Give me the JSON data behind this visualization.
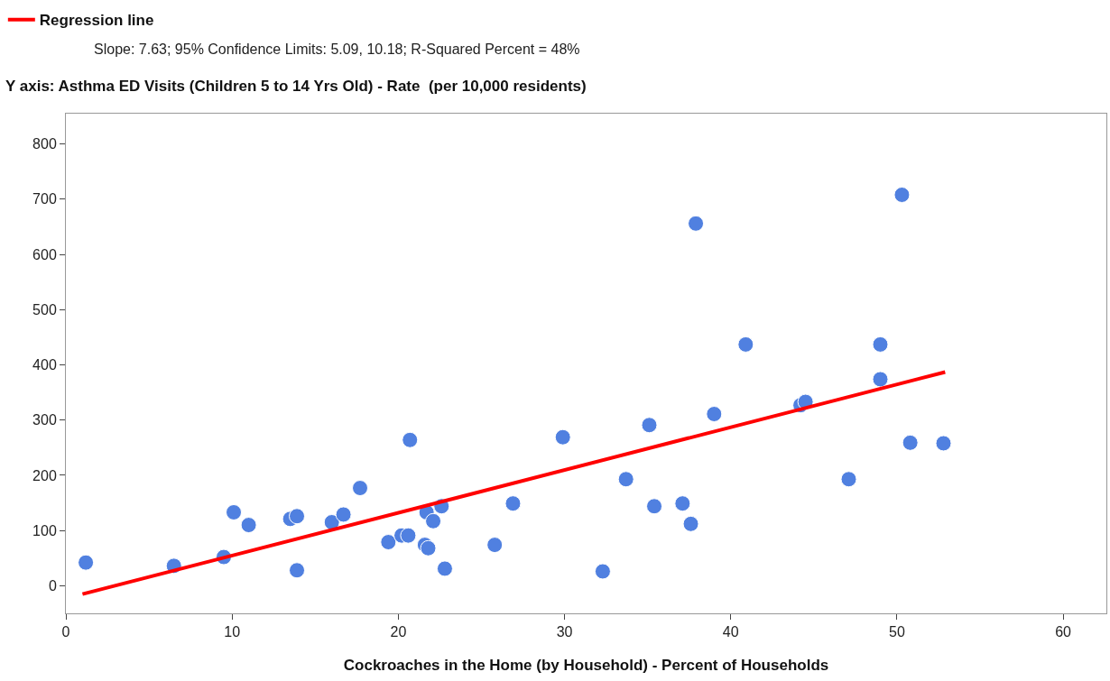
{
  "chart_data": {
    "type": "scatter",
    "annotations": [
      "Slope: 7.63; 95% Confidence Limits: 5.09, 10.18; R-Squared Percent = 48%"
    ],
    "ylabel": "Y axis: Asthma ED Visits (Children 5 to 14 Yrs Old) - Rate  (per 10,000 residents)",
    "xlabel": "Cockroaches in the Home (by Household) - Percent of Households",
    "series": [
      {
        "color": "#5080e0",
        "marker": "circle",
        "x": [
          1.2,
          6.5,
          9.5,
          10.1,
          11.0,
          13.5,
          13.9,
          13.9,
          16.0,
          16.7,
          17.7,
          19.4,
          20.2,
          20.6,
          20.7,
          21.6,
          21.8,
          21.7,
          22.1,
          22.6,
          22.8,
          25.8,
          26.9,
          29.9,
          32.3,
          33.7,
          35.1,
          35.4,
          37.1,
          37.6,
          37.9,
          39.0,
          40.9,
          44.2,
          44.5,
          47.1,
          49.0,
          49.0,
          50.3,
          50.8,
          52.8
        ],
        "values": [
          42,
          36,
          52,
          133,
          110,
          121,
          126,
          28,
          115,
          129,
          177,
          79,
          91,
          91,
          264,
          74,
          68,
          133,
          117,
          144,
          31,
          74,
          149,
          269,
          26,
          193,
          291,
          144,
          149,
          112,
          656,
          311,
          437,
          327,
          333,
          193,
          437,
          374,
          708,
          259,
          258
        ]
      },
      {
        "type": "line",
        "name": "Regression line",
        "color": "#ff0000",
        "line_style": "solid",
        "x": [
          1.0,
          52.9
        ],
        "values": [
          -15,
          387
        ]
      }
    ],
    "xlim": [
      0,
      62.6
    ],
    "xticks": [
      0,
      10,
      20,
      30,
      40,
      50,
      60
    ],
    "ylim": [
      -50,
      855
    ],
    "yticks": [
      0,
      100,
      200,
      300,
      400,
      500,
      600,
      700,
      800
    ],
    "legend": "top left"
  }
}
